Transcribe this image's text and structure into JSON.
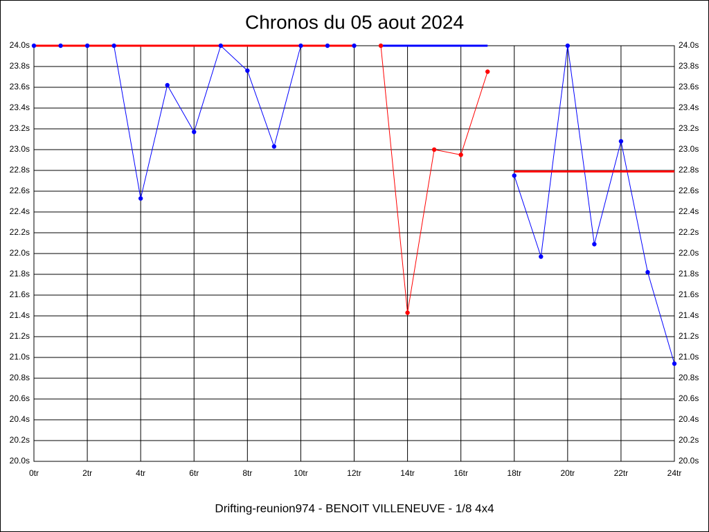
{
  "chart_data": {
    "type": "line",
    "title": "Chronos du 05 aout 2024",
    "x_label": "Drifting-reunion974 - BENOIT VILLENEUVE - 1/8 4x4",
    "xlim": [
      0,
      24
    ],
    "ylim": [
      20.0,
      24.0
    ],
    "grid": true,
    "xticks": [
      {
        "value": 0,
        "label": "0tr"
      },
      {
        "value": 2,
        "label": "2tr"
      },
      {
        "value": 4,
        "label": "4tr"
      },
      {
        "value": 6,
        "label": "6tr"
      },
      {
        "value": 8,
        "label": "8tr"
      },
      {
        "value": 10,
        "label": "10tr"
      },
      {
        "value": 12,
        "label": "12tr"
      },
      {
        "value": 14,
        "label": "14tr"
      },
      {
        "value": 16,
        "label": "16tr"
      },
      {
        "value": 18,
        "label": "18tr"
      },
      {
        "value": 20,
        "label": "20tr"
      },
      {
        "value": 22,
        "label": "22tr"
      },
      {
        "value": 24,
        "label": "24tr"
      }
    ],
    "yticks": [
      {
        "value": 20.0,
        "label": "20.0s"
      },
      {
        "value": 20.2,
        "label": "20.2s"
      },
      {
        "value": 20.4,
        "label": "20.4s"
      },
      {
        "value": 20.6,
        "label": "20.6s"
      },
      {
        "value": 20.8,
        "label": "20.8s"
      },
      {
        "value": 21.0,
        "label": "21.0s"
      },
      {
        "value": 21.2,
        "label": "21.2s"
      },
      {
        "value": 21.4,
        "label": "21.4s"
      },
      {
        "value": 21.6,
        "label": "21.6s"
      },
      {
        "value": 21.8,
        "label": "21.8s"
      },
      {
        "value": 22.0,
        "label": "22.0s"
      },
      {
        "value": 22.2,
        "label": "22.2s"
      },
      {
        "value": 22.4,
        "label": "22.4s"
      },
      {
        "value": 22.6,
        "label": "22.6s"
      },
      {
        "value": 22.8,
        "label": "22.8s"
      },
      {
        "value": 23.0,
        "label": "23.0s"
      },
      {
        "value": 23.2,
        "label": "23.2s"
      },
      {
        "value": 23.4,
        "label": "23.4s"
      },
      {
        "value": 23.6,
        "label": "23.6s"
      },
      {
        "value": 23.8,
        "label": "23.8s"
      },
      {
        "value": 24.0,
        "label": "24.0s"
      }
    ],
    "series": [
      {
        "color": "#0000ff",
        "line_width": 1,
        "markers": true,
        "x": [
          0,
          1,
          2,
          3,
          4,
          5,
          6,
          7,
          8,
          9,
          10,
          11,
          12
        ],
        "values": [
          24.0,
          24.0,
          24.0,
          24.0,
          22.53,
          23.62,
          23.17,
          24.0,
          23.76,
          23.03,
          24.0,
          24.0,
          24.0
        ]
      },
      {
        "color": "#ff0000",
        "line_width": 3,
        "markers": false,
        "x": [
          0,
          12
        ],
        "values": [
          24.0,
          24.0
        ]
      },
      {
        "color": "#ff0000",
        "line_width": 1,
        "markers": true,
        "x": [
          13,
          14,
          15,
          16,
          17
        ],
        "values": [
          24.0,
          21.43,
          23.0,
          22.95,
          23.75
        ]
      },
      {
        "color": "#0000ff",
        "line_width": 3,
        "markers": false,
        "x": [
          13,
          17
        ],
        "values": [
          24.0,
          24.0
        ]
      },
      {
        "color": "#0000ff",
        "line_width": 1,
        "markers": true,
        "x": [
          18,
          19,
          20,
          21,
          22,
          23,
          24
        ],
        "values": [
          22.75,
          21.97,
          24.0,
          22.09,
          23.08,
          21.82,
          20.94
        ]
      },
      {
        "color": "#ff0000",
        "line_width": 3,
        "markers": false,
        "x": [
          18,
          24
        ],
        "values": [
          22.79,
          22.79
        ]
      }
    ]
  }
}
